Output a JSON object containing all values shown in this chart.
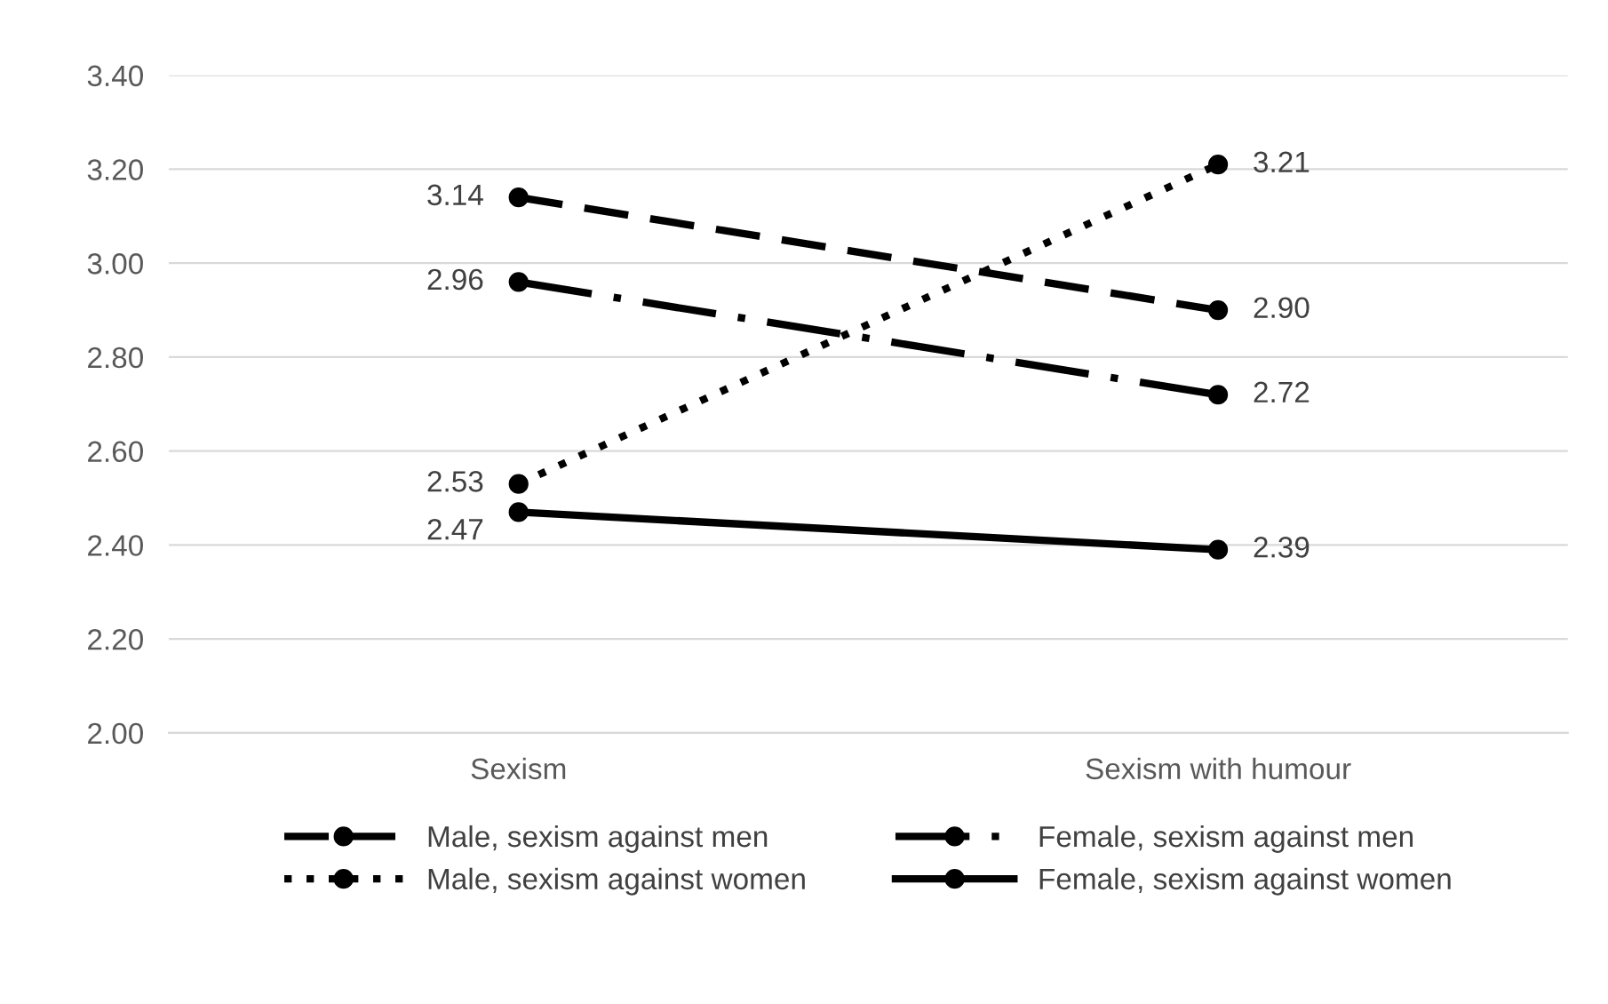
{
  "chart_data": {
    "type": "line",
    "categories": [
      "Sexism",
      "Sexism with humour"
    ],
    "series": [
      {
        "name": "Male, sexism against men",
        "color": "#000000",
        "values": [
          3.14,
          2.9
        ],
        "value_labels": [
          "3.14",
          "2.90"
        ],
        "line_style": "dashed"
      },
      {
        "name": "Male, sexism against women",
        "color": "#000000",
        "values": [
          2.53,
          3.21
        ],
        "value_labels": [
          "2.53",
          "3.21"
        ],
        "line_style": "dotted"
      },
      {
        "name": "Female, sexism against men",
        "color": "#000000",
        "values": [
          2.96,
          2.72
        ],
        "value_labels": [
          "2.96",
          "2.72"
        ],
        "line_style": "dashdot"
      },
      {
        "name": "Female, sexism against women",
        "color": "#000000",
        "values": [
          2.47,
          2.39
        ],
        "value_labels": [
          "2.47",
          "2.39"
        ],
        "line_style": "solid"
      }
    ],
    "ylim": [
      2.0,
      3.4
    ],
    "yticks": [
      {
        "value": 2.0,
        "label": "2.00"
      },
      {
        "value": 2.2,
        "label": "2.20"
      },
      {
        "value": 2.4,
        "label": "2.40"
      },
      {
        "value": 2.6,
        "label": "2.60"
      },
      {
        "value": 2.8,
        "label": "2.80"
      },
      {
        "value": 3.0,
        "label": "3.00"
      },
      {
        "value": 3.2,
        "label": "3.20"
      },
      {
        "value": 3.4,
        "label": "3.40"
      }
    ],
    "grid": "y",
    "legend": "bottom",
    "marker": "circle"
  }
}
